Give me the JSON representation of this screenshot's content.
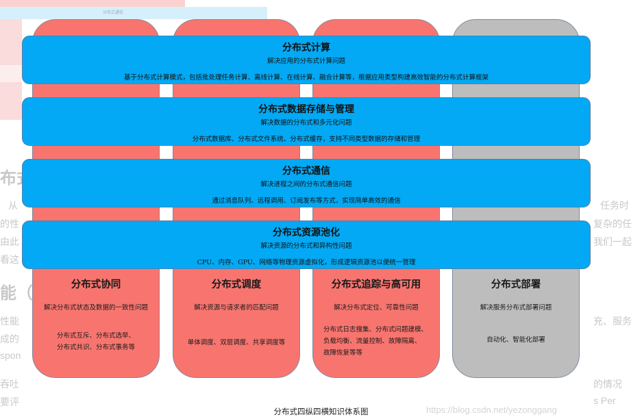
{
  "background": {
    "thumb_caption": "分布式通信",
    "heading_fragment_1": "布式",
    "heading_fragment_2": "能（",
    "left_fragments": [
      "从",
      "的性",
      "由此",
      "看这",
      "性能",
      "成的",
      "spon",
      "吞吐",
      "要评"
    ],
    "right_fragments": [
      "任务时",
      "复杂的任",
      "我们一起",
      "充、服务",
      "的情况",
      "s Per"
    ],
    "watermark": "https://blog.csdn.net/yezonggang"
  },
  "columns": [
    {
      "title": "分布式协同",
      "subtitle": "解决分布式状态及数据的一致性问题",
      "details": [
        "分布式互斥、分布式选举、",
        "分布式共识、分布式事务等"
      ],
      "color": "#f8756f"
    },
    {
      "title": "分布式调度",
      "subtitle": "解决资源与请求者的匹配问题",
      "details": [
        "单体调度、双层调度、共享调度等"
      ],
      "color": "#f8756f"
    },
    {
      "title": "分布式追踪与高可用",
      "subtitle": "解决分布式定位、可靠性问题",
      "details": [
        "分布式日志搜集、分布式问题建模、",
        "负载均衡、流量控制、故障隔离、",
        "故障恢复等等"
      ],
      "color": "#f8756f"
    },
    {
      "title": "分布式部署",
      "subtitle": "解决服务分布式部署问题",
      "details": [
        "自动化、智能化部署"
      ],
      "color": "#bdbdbd"
    }
  ],
  "bands": [
    {
      "title": "分布式计算",
      "subtitle": "解决应用的分布式计算问题",
      "detail": "基于分布式计算模式，包括批处理任务计算、离线计算、在线计算、融合计算等，根据应用类型构建高效智能的分布式计算框架"
    },
    {
      "title": "分布式数据存储与管理",
      "subtitle": "解决数据的分布式和多元化问题",
      "detail": "分布式数据库、分布式文件系统、分布式缓存，支持不同类型数据的存储和管理"
    },
    {
      "title": "分布式通信",
      "subtitle": "解决进程之间的分布式通信问题",
      "detail": "通过消息队列、远程调用、订阅发布等方式，实现简单高效的通信"
    },
    {
      "title": "分布式资源池化",
      "subtitle": "解决资源的分布式和异构性问题",
      "detail": "CPU、内存、GPU、网络等物理资源虚拟化，形成逻辑资源池以便统一管理"
    }
  ],
  "band_color": "#03a9f4",
  "caption": "分布式四纵四横知识体系图"
}
